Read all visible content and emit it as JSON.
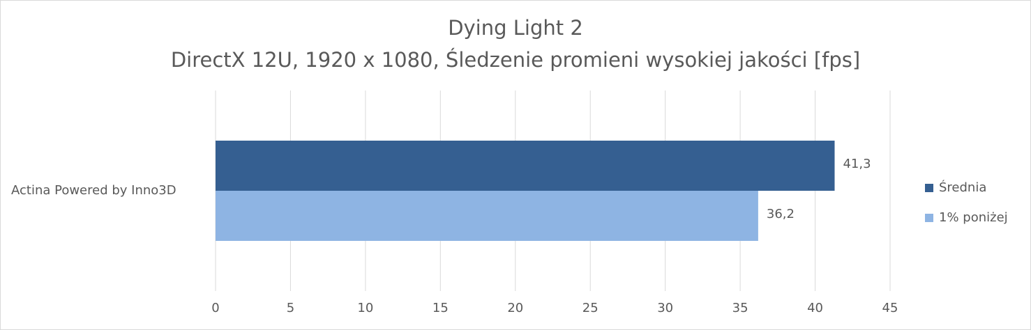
{
  "chart_data": {
    "type": "hbar",
    "title": "Dying Light 2",
    "subtitle": "DirectX 12U, 1920 x 1080, Śledzenie promieni wysokiej jakości [fps]",
    "categories": [
      "Actina Powered by Inno3D"
    ],
    "series": [
      {
        "name": "Średnia",
        "color": "#355f91",
        "values": [
          41.3
        ],
        "value_labels": [
          "41,3"
        ]
      },
      {
        "name": "1% poniżej",
        "color": "#8eb4e3",
        "values": [
          36.2
        ],
        "value_labels": [
          "36,2"
        ]
      }
    ],
    "xlim": [
      0,
      45
    ],
    "xticks": [
      0,
      5,
      10,
      15,
      20,
      25,
      30,
      35,
      40,
      45
    ],
    "grid": true,
    "legend": "right"
  }
}
